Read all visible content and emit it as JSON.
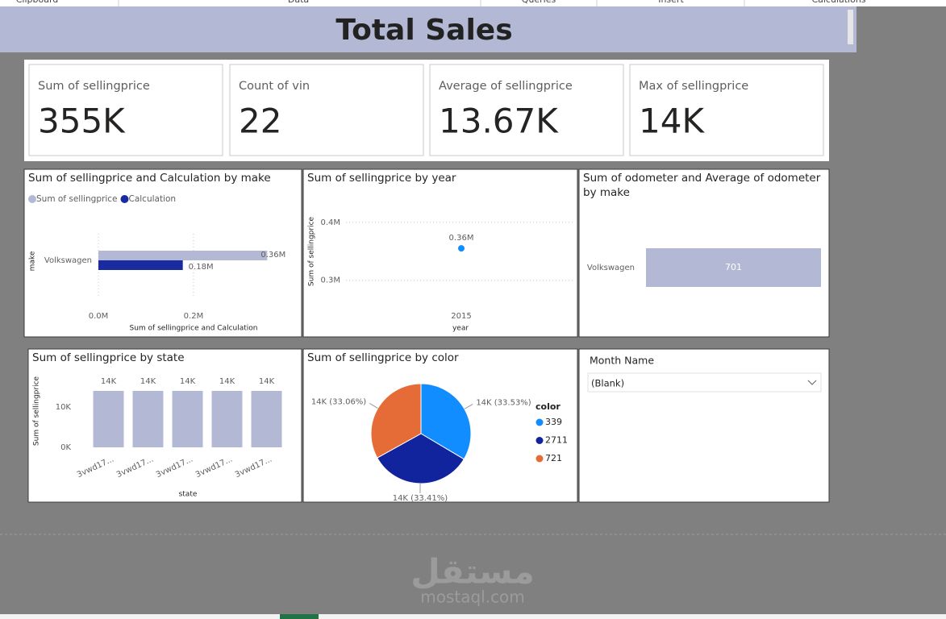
{
  "ribbon": [
    "Clipboard",
    "Data",
    "Queries",
    "Insert",
    "Calculations"
  ],
  "header": {
    "title": "Total Sales"
  },
  "cards": [
    {
      "label": "Sum of sellingprice",
      "value": "355K"
    },
    {
      "label": "Count of vin",
      "value": "22"
    },
    {
      "label": "Average of sellingprice",
      "value": "13.67K"
    },
    {
      "label": "Max of sellingprice",
      "value": "14K"
    }
  ],
  "visuals": [
    {
      "type": "bar",
      "horizontal": true,
      "title": "Sum of sellingprice and Calculation by make",
      "categories": [
        "Volkswagen"
      ],
      "series": [
        {
          "name": "Sum of sellingprice",
          "color": "#b3b8d4",
          "values": [
            355000
          ],
          "value_labels": [
            "0.36M"
          ]
        },
        {
          "name": "Calculation",
          "color": "#1a2aa0",
          "values": [
            177500
          ],
          "value_labels": [
            "0.18M"
          ]
        }
      ],
      "xlim": [
        0,
        390000
      ],
      "xticks": [
        {
          "value": 0,
          "label": "0.0M"
        },
        {
          "value": 200000,
          "label": "0.2M"
        }
      ],
      "x_label": "Sum of sellingprice and Calculation",
      "y_label": "make",
      "grid": true,
      "legend": "top"
    },
    {
      "type": "line",
      "title": "Sum of sellingprice by year",
      "categories": [
        "2015"
      ],
      "values": [
        355000
      ],
      "value_labels": [
        "0.36M"
      ],
      "color": "#118dff",
      "ylim": [
        255000,
        415000
      ],
      "yticks": [
        {
          "value": 300000,
          "label": "0.3M"
        },
        {
          "value": 400000,
          "label": "0.4M"
        }
      ],
      "x_label": "year",
      "y_label": "Sum of sellingprice",
      "grid": true
    },
    {
      "type": "bar",
      "horizontal": true,
      "title": "Sum of odometer and Average of odometer by make",
      "categories": [
        "Volkswagen"
      ],
      "series": [
        {
          "color": "#b3b8d4",
          "values": [
            701
          ]
        }
      ],
      "xlim": [
        0,
        701
      ],
      "value_label_inside": true
    },
    {
      "type": "bar",
      "horizontal": false,
      "title": "Sum of sellingprice by state",
      "categories": [
        "3vwd17...",
        "3vwd17...",
        "3vwd17...",
        "3vwd17...",
        "3vwd17..."
      ],
      "series": [
        {
          "color": "#b3b8d4",
          "values": [
            14000,
            14000,
            14000,
            14000,
            14000
          ],
          "value_labels": [
            "14K",
            "14K",
            "14K",
            "14K",
            "14K"
          ]
        }
      ],
      "ylim": [
        0,
        18000
      ],
      "yticks": [
        {
          "value": 0,
          "label": "0K"
        },
        {
          "value": 10000,
          "label": "10K"
        }
      ],
      "x_label": "state",
      "y_label": "Sum of sellingprice"
    },
    {
      "type": "pie",
      "title": "Sum of sellingprice by color",
      "legend_title": "color",
      "categories": [
        "339",
        "2711",
        "721"
      ],
      "values": [
        33.53,
        33.41,
        33.06
      ],
      "value_labels": [
        "14K (33.53%)",
        "14K (33.41%)",
        "14K (33.06%)"
      ],
      "colors": [
        "#118dff",
        "#12239e",
        "#e66c37"
      ],
      "legend": "right"
    }
  ],
  "slicer": {
    "title": "Month Name",
    "selected": "(Blank)"
  },
  "watermark": {
    "logo": "مستقل",
    "site": "mostaql.com"
  }
}
